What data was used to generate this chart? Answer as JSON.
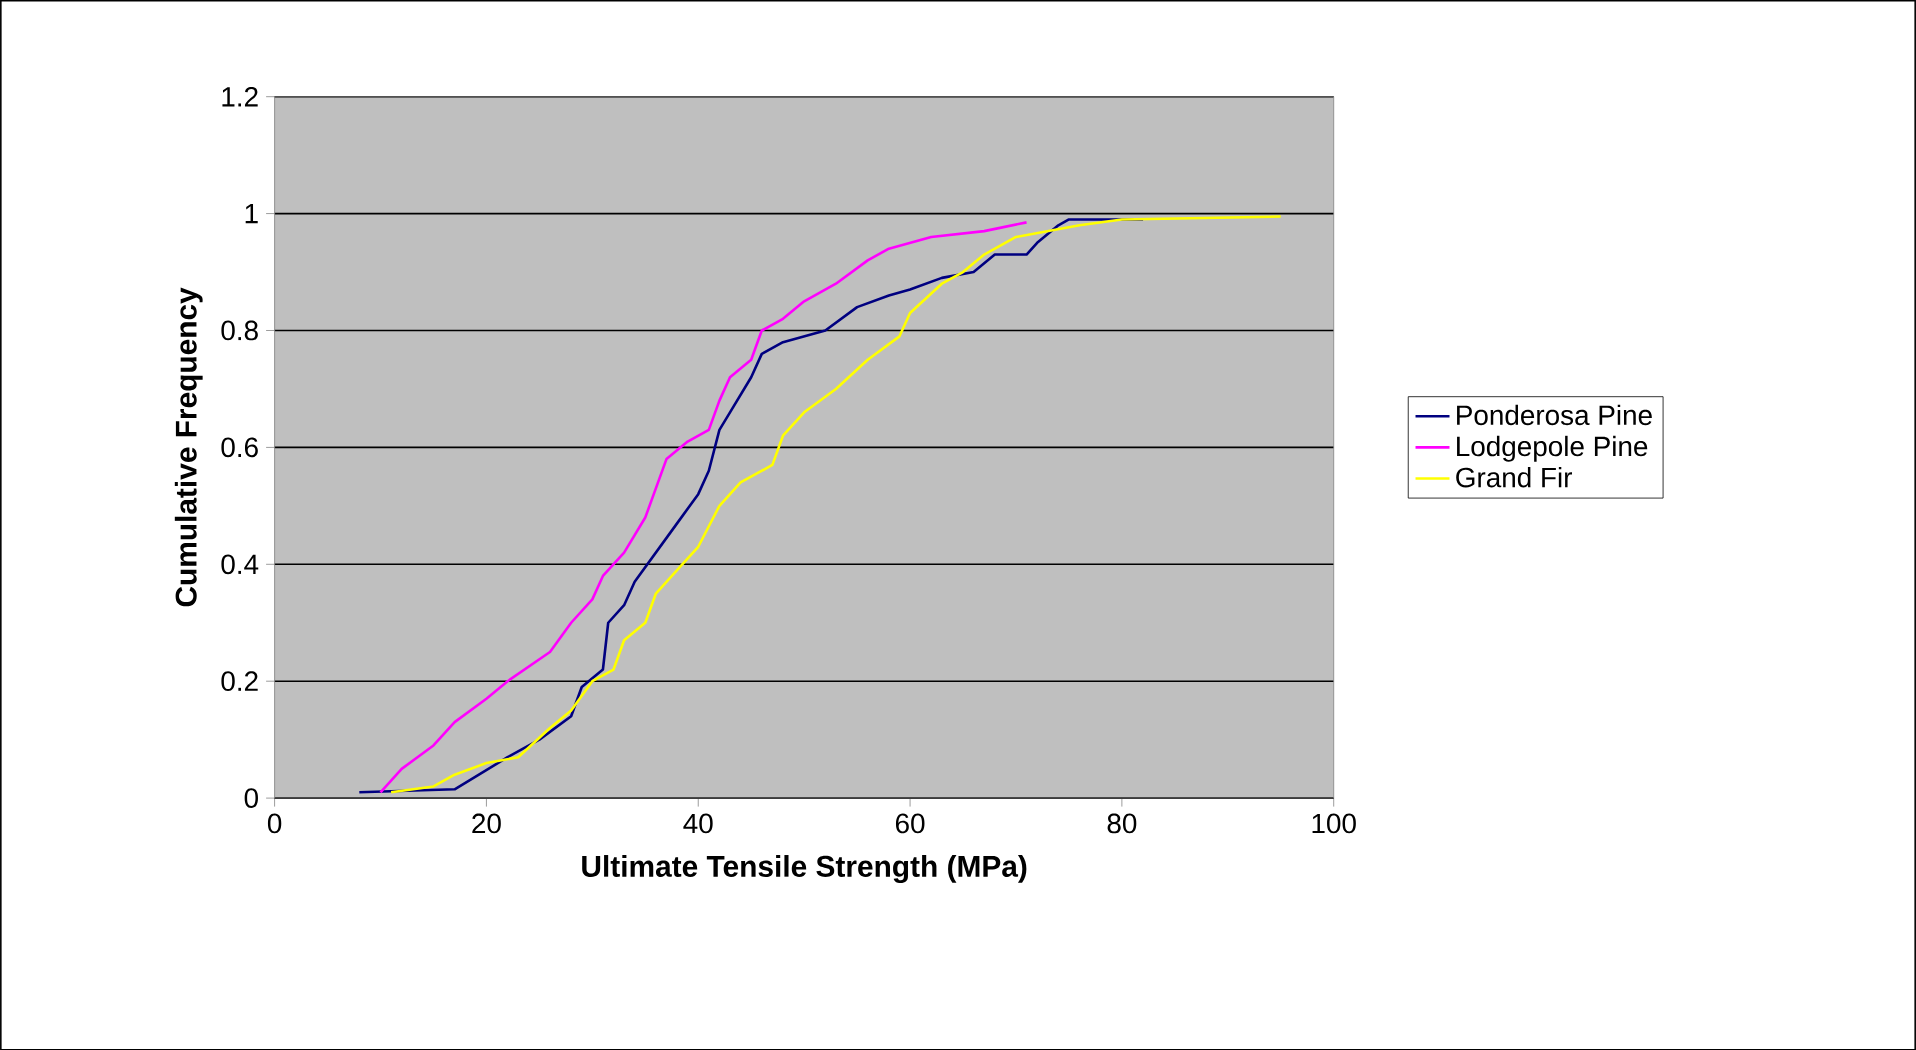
{
  "chart_data": {
    "type": "line",
    "xlabel": "Ultimate Tensile Strength (MPa)",
    "ylabel": "Cumulative Frequency",
    "xlim": [
      0,
      100
    ],
    "xticks": [
      0,
      20,
      40,
      60,
      80,
      100
    ],
    "ylim": [
      0,
      1.2
    ],
    "yticks": [
      0,
      0.2,
      0.4,
      0.6,
      0.8,
      1,
      1.2
    ],
    "grid": "y",
    "legend": "right",
    "marker": "none",
    "line_style": "solid",
    "series": [
      {
        "name": "Ponderosa Pine",
        "color": "#000080",
        "x": [
          8,
          17,
          22,
          25,
          28,
          29,
          31,
          31.5,
          33,
          34,
          36,
          38,
          40,
          41,
          42,
          43,
          45,
          46,
          48,
          52,
          55,
          58,
          60,
          63,
          66,
          68,
          71,
          72,
          74,
          75,
          82
        ],
        "values": [
          0.01,
          0.015,
          0.07,
          0.1,
          0.14,
          0.19,
          0.22,
          0.3,
          0.33,
          0.37,
          0.42,
          0.47,
          0.52,
          0.56,
          0.63,
          0.66,
          0.72,
          0.76,
          0.78,
          0.8,
          0.84,
          0.86,
          0.87,
          0.89,
          0.9,
          0.93,
          0.93,
          0.95,
          0.98,
          0.99,
          0.99
        ]
      },
      {
        "name": "Lodgepole Pine",
        "color": "#ff00ff",
        "x": [
          10,
          12,
          15,
          17,
          20,
          22,
          26,
          28,
          30,
          31,
          33,
          35,
          36,
          37,
          39,
          41,
          42,
          43,
          45,
          46,
          48,
          50,
          53,
          56,
          58,
          62,
          67,
          71
        ],
        "values": [
          0.01,
          0.05,
          0.09,
          0.13,
          0.17,
          0.2,
          0.25,
          0.3,
          0.34,
          0.38,
          0.42,
          0.48,
          0.53,
          0.58,
          0.61,
          0.63,
          0.68,
          0.72,
          0.75,
          0.8,
          0.82,
          0.85,
          0.88,
          0.92,
          0.94,
          0.96,
          0.97,
          0.985
        ]
      },
      {
        "name": "Grand Fir",
        "color": "#ffff00",
        "x": [
          11,
          15,
          17,
          20,
          23,
          26,
          28,
          30,
          32,
          33,
          35,
          36,
          38,
          40,
          42,
          44,
          47,
          48,
          50,
          53,
          56,
          59,
          60,
          63,
          65,
          67,
          70,
          76,
          80,
          95
        ],
        "values": [
          0.01,
          0.02,
          0.04,
          0.06,
          0.07,
          0.12,
          0.15,
          0.2,
          0.22,
          0.27,
          0.3,
          0.35,
          0.39,
          0.43,
          0.5,
          0.54,
          0.57,
          0.62,
          0.66,
          0.7,
          0.75,
          0.79,
          0.83,
          0.88,
          0.9,
          0.93,
          0.96,
          0.98,
          0.99,
          0.995
        ]
      }
    ]
  }
}
